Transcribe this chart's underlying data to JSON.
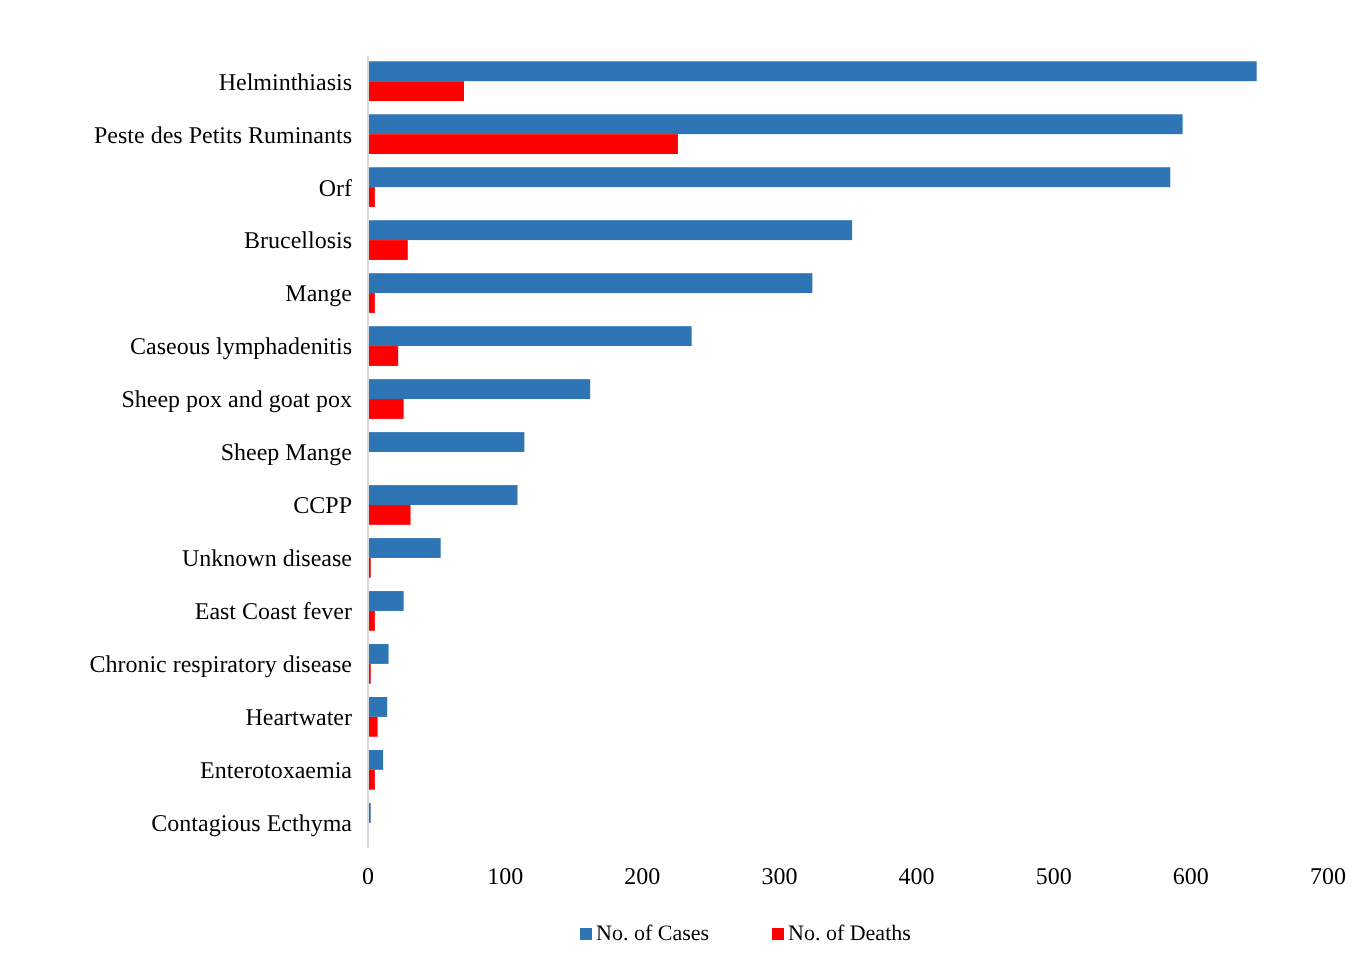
{
  "chart_data": {
    "type": "bar",
    "orientation": "horizontal",
    "categories": [
      "Helminthiasis",
      "Peste des Petits Ruminants",
      "Orf",
      "Brucellosis",
      "Mange",
      "Caseous lymphadenitis",
      "Sheep pox and goat pox",
      "Sheep Mange",
      "CCPP",
      "Unknown disease",
      "East Coast fever",
      "Chronic respiratory disease",
      "Heartwater",
      "Enterotoxaemia",
      "Contagious Ecthyma"
    ],
    "series": [
      {
        "name": "No. of Cases",
        "color": "#2e75b6",
        "values": [
          648,
          594,
          585,
          353,
          324,
          236,
          162,
          114,
          109,
          53,
          26,
          15,
          14,
          11,
          2
        ]
      },
      {
        "name": "No. of Deaths",
        "color": "#ff0000",
        "values": [
          70,
          226,
          5,
          29,
          5,
          22,
          26,
          0,
          31,
          2,
          5,
          2,
          7,
          5,
          0
        ]
      }
    ],
    "xlim": [
      0,
      700
    ],
    "xticks": [
      0,
      100,
      200,
      300,
      400,
      500,
      600,
      700
    ],
    "grid": false,
    "legend": "bottom"
  }
}
